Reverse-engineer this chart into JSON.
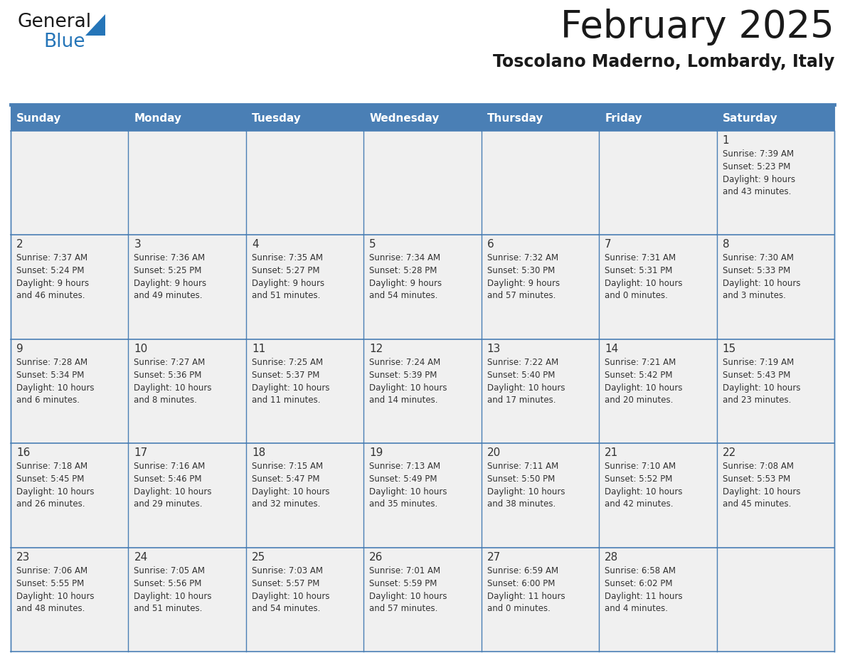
{
  "title": "February 2025",
  "subtitle": "Toscolano Maderno, Lombardy, Italy",
  "days_of_week": [
    "Sunday",
    "Monday",
    "Tuesday",
    "Wednesday",
    "Thursday",
    "Friday",
    "Saturday"
  ],
  "header_bg": "#4a7fb5",
  "header_text": "#ffffff",
  "cell_bg": "#f0f0f0",
  "border_color": "#4a7fb5",
  "text_color": "#333333",
  "title_color": "#1a1a1a",
  "logo_general_color": "#1a1a1a",
  "logo_blue_color": "#2575b8",
  "calendar_data": [
    [
      null,
      null,
      null,
      null,
      null,
      null,
      {
        "day": "1",
        "sunrise": "Sunrise: 7:39 AM",
        "sunset": "Sunset: 5:23 PM",
        "daylight": "Daylight: 9 hours\nand 43 minutes."
      }
    ],
    [
      {
        "day": "2",
        "sunrise": "Sunrise: 7:37 AM",
        "sunset": "Sunset: 5:24 PM",
        "daylight": "Daylight: 9 hours\nand 46 minutes."
      },
      {
        "day": "3",
        "sunrise": "Sunrise: 7:36 AM",
        "sunset": "Sunset: 5:25 PM",
        "daylight": "Daylight: 9 hours\nand 49 minutes."
      },
      {
        "day": "4",
        "sunrise": "Sunrise: 7:35 AM",
        "sunset": "Sunset: 5:27 PM",
        "daylight": "Daylight: 9 hours\nand 51 minutes."
      },
      {
        "day": "5",
        "sunrise": "Sunrise: 7:34 AM",
        "sunset": "Sunset: 5:28 PM",
        "daylight": "Daylight: 9 hours\nand 54 minutes."
      },
      {
        "day": "6",
        "sunrise": "Sunrise: 7:32 AM",
        "sunset": "Sunset: 5:30 PM",
        "daylight": "Daylight: 9 hours\nand 57 minutes."
      },
      {
        "day": "7",
        "sunrise": "Sunrise: 7:31 AM",
        "sunset": "Sunset: 5:31 PM",
        "daylight": "Daylight: 10 hours\nand 0 minutes."
      },
      {
        "day": "8",
        "sunrise": "Sunrise: 7:30 AM",
        "sunset": "Sunset: 5:33 PM",
        "daylight": "Daylight: 10 hours\nand 3 minutes."
      }
    ],
    [
      {
        "day": "9",
        "sunrise": "Sunrise: 7:28 AM",
        "sunset": "Sunset: 5:34 PM",
        "daylight": "Daylight: 10 hours\nand 6 minutes."
      },
      {
        "day": "10",
        "sunrise": "Sunrise: 7:27 AM",
        "sunset": "Sunset: 5:36 PM",
        "daylight": "Daylight: 10 hours\nand 8 minutes."
      },
      {
        "day": "11",
        "sunrise": "Sunrise: 7:25 AM",
        "sunset": "Sunset: 5:37 PM",
        "daylight": "Daylight: 10 hours\nand 11 minutes."
      },
      {
        "day": "12",
        "sunrise": "Sunrise: 7:24 AM",
        "sunset": "Sunset: 5:39 PM",
        "daylight": "Daylight: 10 hours\nand 14 minutes."
      },
      {
        "day": "13",
        "sunrise": "Sunrise: 7:22 AM",
        "sunset": "Sunset: 5:40 PM",
        "daylight": "Daylight: 10 hours\nand 17 minutes."
      },
      {
        "day": "14",
        "sunrise": "Sunrise: 7:21 AM",
        "sunset": "Sunset: 5:42 PM",
        "daylight": "Daylight: 10 hours\nand 20 minutes."
      },
      {
        "day": "15",
        "sunrise": "Sunrise: 7:19 AM",
        "sunset": "Sunset: 5:43 PM",
        "daylight": "Daylight: 10 hours\nand 23 minutes."
      }
    ],
    [
      {
        "day": "16",
        "sunrise": "Sunrise: 7:18 AM",
        "sunset": "Sunset: 5:45 PM",
        "daylight": "Daylight: 10 hours\nand 26 minutes."
      },
      {
        "day": "17",
        "sunrise": "Sunrise: 7:16 AM",
        "sunset": "Sunset: 5:46 PM",
        "daylight": "Daylight: 10 hours\nand 29 minutes."
      },
      {
        "day": "18",
        "sunrise": "Sunrise: 7:15 AM",
        "sunset": "Sunset: 5:47 PM",
        "daylight": "Daylight: 10 hours\nand 32 minutes."
      },
      {
        "day": "19",
        "sunrise": "Sunrise: 7:13 AM",
        "sunset": "Sunset: 5:49 PM",
        "daylight": "Daylight: 10 hours\nand 35 minutes."
      },
      {
        "day": "20",
        "sunrise": "Sunrise: 7:11 AM",
        "sunset": "Sunset: 5:50 PM",
        "daylight": "Daylight: 10 hours\nand 38 minutes."
      },
      {
        "day": "21",
        "sunrise": "Sunrise: 7:10 AM",
        "sunset": "Sunset: 5:52 PM",
        "daylight": "Daylight: 10 hours\nand 42 minutes."
      },
      {
        "day": "22",
        "sunrise": "Sunrise: 7:08 AM",
        "sunset": "Sunset: 5:53 PM",
        "daylight": "Daylight: 10 hours\nand 45 minutes."
      }
    ],
    [
      {
        "day": "23",
        "sunrise": "Sunrise: 7:06 AM",
        "sunset": "Sunset: 5:55 PM",
        "daylight": "Daylight: 10 hours\nand 48 minutes."
      },
      {
        "day": "24",
        "sunrise": "Sunrise: 7:05 AM",
        "sunset": "Sunset: 5:56 PM",
        "daylight": "Daylight: 10 hours\nand 51 minutes."
      },
      {
        "day": "25",
        "sunrise": "Sunrise: 7:03 AM",
        "sunset": "Sunset: 5:57 PM",
        "daylight": "Daylight: 10 hours\nand 54 minutes."
      },
      {
        "day": "26",
        "sunrise": "Sunrise: 7:01 AM",
        "sunset": "Sunset: 5:59 PM",
        "daylight": "Daylight: 10 hours\nand 57 minutes."
      },
      {
        "day": "27",
        "sunrise": "Sunrise: 6:59 AM",
        "sunset": "Sunset: 6:00 PM",
        "daylight": "Daylight: 11 hours\nand 0 minutes."
      },
      {
        "day": "28",
        "sunrise": "Sunrise: 6:58 AM",
        "sunset": "Sunset: 6:02 PM",
        "daylight": "Daylight: 11 hours\nand 4 minutes."
      },
      null
    ]
  ]
}
